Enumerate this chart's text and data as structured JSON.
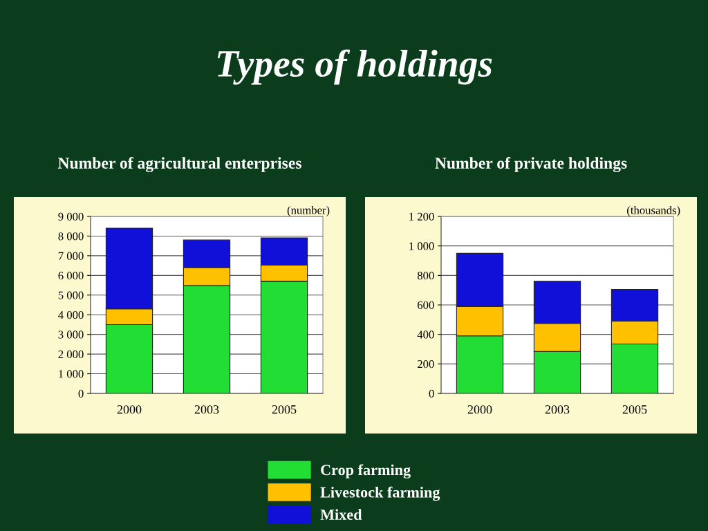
{
  "chart_data": [
    {
      "type": "bar",
      "title": "Types of holdings",
      "subtitle": "Number of agricultural enterprises",
      "ylabel": "(number)",
      "categories": [
        "2000",
        "2003",
        "2005"
      ],
      "stacked": true,
      "series": [
        {
          "name": "Crop farming",
          "color": "#22dd33",
          "values": [
            3500,
            5480,
            5700
          ]
        },
        {
          "name": "Livestock farming",
          "color": "#ffc000",
          "values": [
            800,
            920,
            820
          ]
        },
        {
          "name": "Mixed",
          "color": "#1010d8",
          "values": [
            4100,
            1400,
            1390
          ]
        }
      ],
      "ylim": [
        0,
        9000
      ],
      "yticks": [
        {
          "value": 0,
          "label": "0"
        },
        {
          "value": 1000,
          "label": "1 000"
        },
        {
          "value": 2000,
          "label": "2 000"
        },
        {
          "value": 3000,
          "label": "3 000"
        },
        {
          "value": 4000,
          "label": "4 000"
        },
        {
          "value": 5000,
          "label": "5 000"
        },
        {
          "value": 6000,
          "label": "6 000"
        },
        {
          "value": 7000,
          "label": "7 000"
        },
        {
          "value": 8000,
          "label": "8 000"
        },
        {
          "value": 9000,
          "label": "9 000"
        }
      ],
      "grid": "y",
      "legend": "bottom"
    },
    {
      "type": "bar",
      "subtitle": "Number of private holdings",
      "ylabel": "(thousands)",
      "categories": [
        "2000",
        "2003",
        "2005"
      ],
      "stacked": true,
      "series": [
        {
          "color": "#22dd33",
          "values": [
            390,
            285,
            335
          ]
        },
        {
          "color": "#ffc000",
          "values": [
            200,
            190,
            155
          ]
        },
        {
          "color": "#1010d8",
          "values": [
            360,
            285,
            215
          ]
        }
      ],
      "ylim": [
        0,
        1200
      ],
      "yticks": [
        0,
        200,
        400,
        600,
        800,
        {
          "value": 1000,
          "label": "1 000"
        },
        {
          "value": 1200,
          "label": "1 200"
        }
      ],
      "grid": "y"
    }
  ]
}
